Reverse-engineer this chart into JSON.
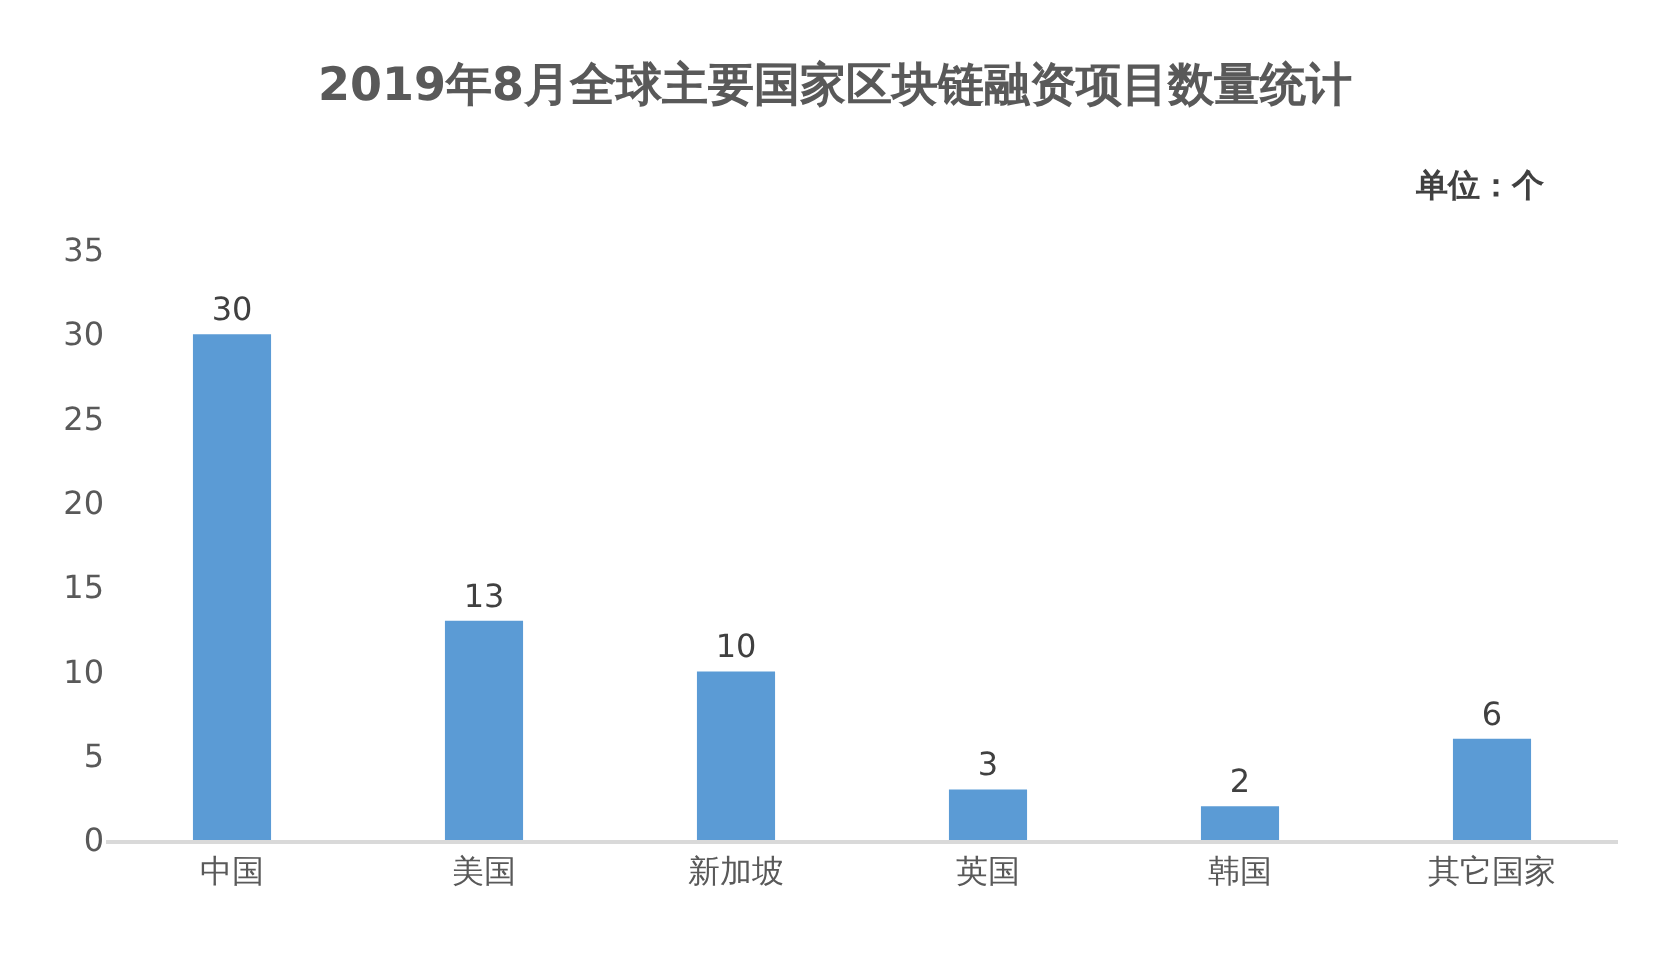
{
  "chart_data": {
    "type": "bar",
    "title": "2019年8月全球主要国家区块链融资项目数量统计",
    "annotations": [
      "单位：个"
    ],
    "categories": [
      "中国",
      "美国",
      "新加坡",
      "英国",
      "韩国",
      "其它国家"
    ],
    "values": [
      30,
      13,
      10,
      3,
      2,
      6
    ],
    "color": "#5b9bd5",
    "ylim": [
      0,
      35
    ],
    "yticks": [
      0,
      5,
      10,
      15,
      20,
      25,
      30,
      35
    ],
    "data_labels": true
  }
}
